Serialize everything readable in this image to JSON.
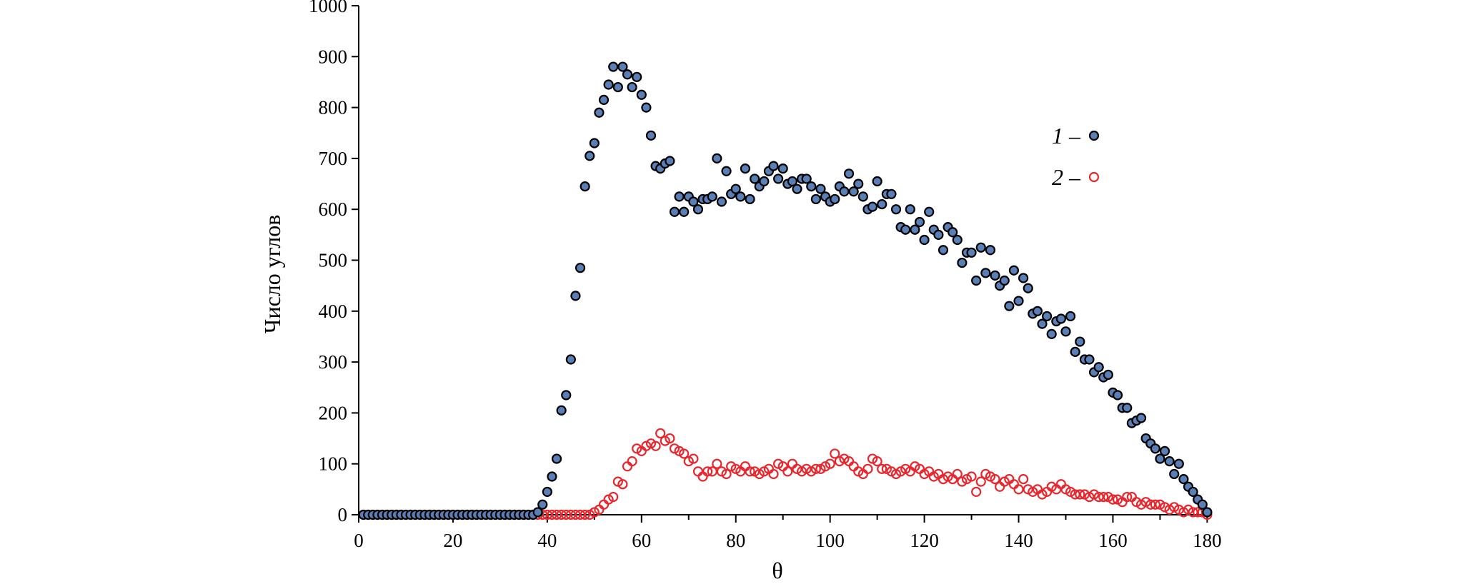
{
  "chart_data": {
    "type": "scatter",
    "xlabel": "θ",
    "ylabel": "Число углов",
    "xlim": [
      0,
      181
    ],
    "ylim": [
      0,
      1000
    ],
    "xticks": [
      "0",
      "20",
      "40",
      "60",
      "80",
      "100",
      "120",
      "140",
      "160",
      "180"
    ],
    "yticks": [
      "0",
      "100",
      "200",
      "300",
      "400",
      "500",
      "600",
      "700",
      "800",
      "900",
      "1000"
    ],
    "grid": false,
    "legend_position": "right",
    "series": [
      {
        "name": "1 –",
        "color": "#5a7fb6",
        "edge_color": "#000000",
        "filled": true,
        "x": [
          1,
          2,
          3,
          4,
          5,
          6,
          7,
          8,
          9,
          10,
          11,
          12,
          13,
          14,
          15,
          16,
          17,
          18,
          19,
          20,
          21,
          22,
          23,
          24,
          25,
          26,
          27,
          28,
          29,
          30,
          31,
          32,
          33,
          34,
          35,
          36,
          37,
          38,
          39,
          40,
          41,
          42,
          43,
          44,
          45,
          46,
          47,
          48,
          49,
          50,
          51,
          52,
          53,
          54,
          55,
          56,
          57,
          58,
          59,
          60,
          61,
          62,
          63,
          64,
          65,
          66,
          67,
          68,
          69,
          70,
          71,
          72,
          73,
          74,
          75,
          76,
          77,
          78,
          79,
          80,
          81,
          82,
          83,
          84,
          85,
          86,
          87,
          88,
          89,
          90,
          91,
          92,
          93,
          94,
          95,
          96,
          97,
          98,
          99,
          100,
          101,
          102,
          103,
          104,
          105,
          106,
          107,
          108,
          109,
          110,
          111,
          112,
          113,
          114,
          115,
          116,
          117,
          118,
          119,
          120,
          121,
          122,
          123,
          124,
          125,
          126,
          127,
          128,
          129,
          130,
          131,
          132,
          133,
          134,
          135,
          136,
          137,
          138,
          139,
          140,
          141,
          142,
          143,
          144,
          145,
          146,
          147,
          148,
          149,
          150,
          151,
          152,
          153,
          154,
          155,
          156,
          157,
          158,
          159,
          160,
          161,
          162,
          163,
          164,
          165,
          166,
          167,
          168,
          169,
          170,
          171,
          172,
          173,
          174,
          175,
          176,
          177,
          178,
          179,
          180
        ],
        "y": [
          0,
          0,
          0,
          0,
          0,
          0,
          0,
          0,
          0,
          0,
          0,
          0,
          0,
          0,
          0,
          0,
          0,
          0,
          0,
          0,
          0,
          0,
          0,
          0,
          0,
          0,
          0,
          0,
          0,
          0,
          0,
          0,
          0,
          0,
          0,
          0,
          0,
          5,
          20,
          45,
          75,
          110,
          205,
          235,
          305,
          430,
          485,
          645,
          705,
          730,
          790,
          815,
          845,
          880,
          840,
          880,
          865,
          840,
          860,
          825,
          800,
          745,
          685,
          680,
          690,
          695,
          595,
          625,
          595,
          625,
          615,
          600,
          620,
          620,
          625,
          700,
          615,
          675,
          630,
          640,
          625,
          680,
          620,
          660,
          645,
          655,
          675,
          685,
          660,
          680,
          650,
          655,
          640,
          660,
          660,
          645,
          620,
          640,
          625,
          615,
          620,
          645,
          635,
          670,
          635,
          650,
          625,
          600,
          605,
          655,
          610,
          630,
          630,
          600,
          565,
          560,
          600,
          560,
          575,
          540,
          595,
          560,
          550,
          520,
          565,
          555,
          540,
          495,
          515,
          515,
          460,
          525,
          475,
          520,
          470,
          450,
          460,
          410,
          480,
          420,
          465,
          445,
          395,
          400,
          375,
          390,
          355,
          380,
          385,
          360,
          390,
          320,
          340,
          305,
          305,
          280,
          290,
          270,
          275,
          240,
          235,
          210,
          210,
          180,
          185,
          190,
          150,
          140,
          130,
          110,
          125,
          105,
          80,
          100,
          70,
          55,
          45,
          30,
          20,
          5
        ]
      },
      {
        "name": "2 –",
        "color": "#e8262d",
        "filled": false,
        "x": [
          1,
          2,
          3,
          4,
          5,
          6,
          7,
          8,
          9,
          10,
          11,
          12,
          13,
          14,
          15,
          16,
          17,
          18,
          19,
          20,
          21,
          22,
          23,
          24,
          25,
          26,
          27,
          28,
          29,
          30,
          31,
          32,
          33,
          34,
          35,
          36,
          37,
          38,
          39,
          40,
          41,
          42,
          43,
          44,
          45,
          46,
          47,
          48,
          49,
          50,
          51,
          52,
          53,
          54,
          55,
          56,
          57,
          58,
          59,
          60,
          61,
          62,
          63,
          64,
          65,
          66,
          67,
          68,
          69,
          70,
          71,
          72,
          73,
          74,
          75,
          76,
          77,
          78,
          79,
          80,
          81,
          82,
          83,
          84,
          85,
          86,
          87,
          88,
          89,
          90,
          91,
          92,
          93,
          94,
          95,
          96,
          97,
          98,
          99,
          100,
          101,
          102,
          103,
          104,
          105,
          106,
          107,
          108,
          109,
          110,
          111,
          112,
          113,
          114,
          115,
          116,
          117,
          118,
          119,
          120,
          121,
          122,
          123,
          124,
          125,
          126,
          127,
          128,
          129,
          130,
          131,
          132,
          133,
          134,
          135,
          136,
          137,
          138,
          139,
          140,
          141,
          142,
          143,
          144,
          145,
          146,
          147,
          148,
          149,
          150,
          151,
          152,
          153,
          154,
          155,
          156,
          157,
          158,
          159,
          160,
          161,
          162,
          163,
          164,
          165,
          166,
          167,
          168,
          169,
          170,
          171,
          172,
          173,
          174,
          175,
          176,
          177,
          178,
          179,
          180
        ],
        "y": [
          0,
          0,
          0,
          0,
          0,
          0,
          0,
          0,
          0,
          0,
          0,
          0,
          0,
          0,
          0,
          0,
          0,
          0,
          0,
          0,
          0,
          0,
          0,
          0,
          0,
          0,
          0,
          0,
          0,
          0,
          0,
          0,
          0,
          0,
          0,
          0,
          0,
          0,
          0,
          0,
          0,
          0,
          0,
          0,
          0,
          0,
          0,
          0,
          0,
          5,
          10,
          20,
          30,
          35,
          65,
          60,
          95,
          105,
          130,
          125,
          135,
          140,
          135,
          160,
          145,
          150,
          130,
          125,
          120,
          105,
          110,
          85,
          75,
          85,
          85,
          100,
          85,
          80,
          95,
          90,
          85,
          95,
          85,
          85,
          80,
          85,
          90,
          80,
          100,
          95,
          85,
          100,
          90,
          85,
          90,
          85,
          90,
          90,
          95,
          100,
          120,
          105,
          110,
          105,
          95,
          85,
          80,
          90,
          110,
          105,
          90,
          90,
          85,
          80,
          85,
          90,
          85,
          95,
          90,
          80,
          85,
          75,
          80,
          70,
          75,
          70,
          80,
          65,
          70,
          75,
          45,
          65,
          80,
          75,
          70,
          55,
          65,
          70,
          60,
          50,
          70,
          50,
          45,
          50,
          40,
          45,
          55,
          50,
          60,
          50,
          45,
          40,
          40,
          40,
          35,
          40,
          35,
          35,
          35,
          30,
          30,
          25,
          35,
          35,
          25,
          20,
          25,
          20,
          20,
          20,
          15,
          10,
          15,
          10,
          5,
          10,
          5,
          5,
          5,
          0
        ]
      }
    ]
  }
}
